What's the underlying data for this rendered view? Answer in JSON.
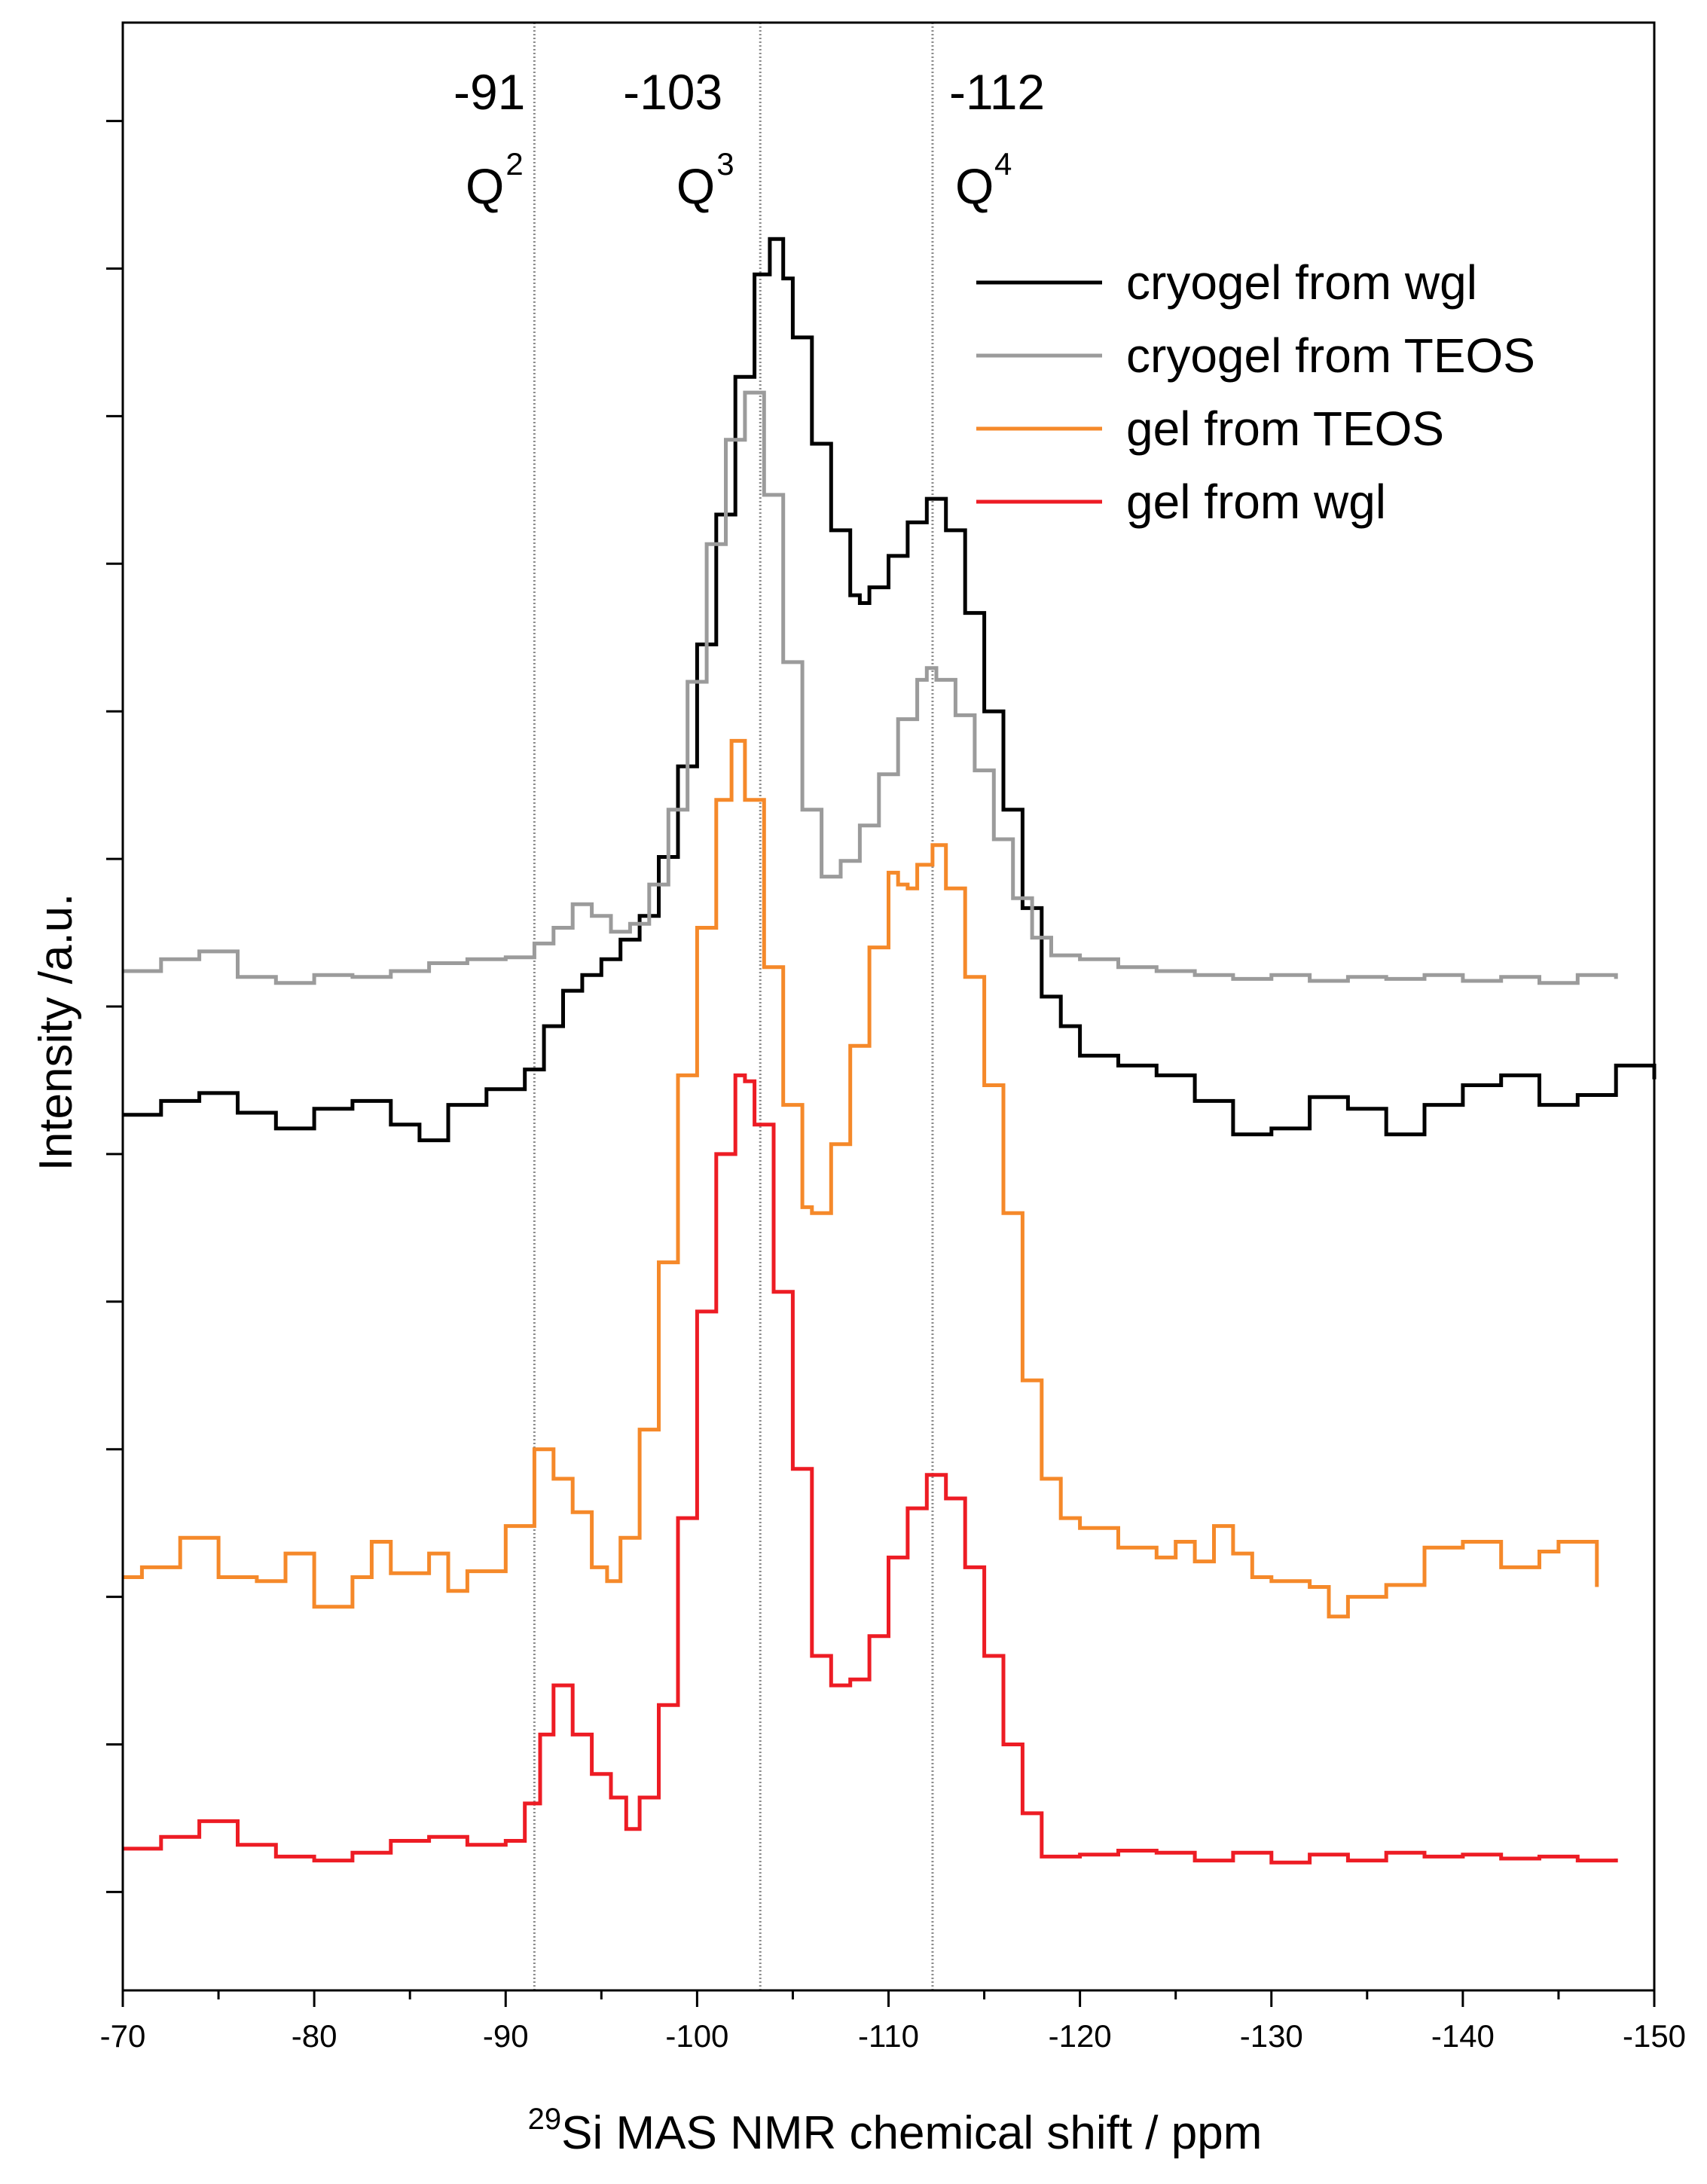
{
  "chart_data": {
    "type": "line",
    "title": "",
    "xlabel_sup": "29",
    "xlabel": "Si MAS NMR chemical shift / ppm",
    "ylabel": "Intensity /a.u.",
    "xlim": [
      -70,
      -150
    ],
    "ylim": [
      0,
      100
    ],
    "x_ticks": [
      -70,
      -80,
      -90,
      -100,
      -110,
      -120,
      -130,
      -140,
      -150
    ],
    "x_tick_labels": [
      "-70",
      "-80",
      "-90",
      "-100",
      "-110",
      "-120",
      "-130",
      "-140",
      "-150"
    ],
    "y_ticks": [
      5,
      12.5,
      20,
      27.5,
      35,
      42.5,
      50,
      57.5,
      65,
      72.5,
      80,
      87.5,
      95
    ],
    "reference_lines": [
      {
        "x": -91.5,
        "value_label": "-91",
        "species": "Q",
        "sup": "2"
      },
      {
        "x": -103.3,
        "value_label": "-103",
        "species": "Q",
        "sup": "3"
      },
      {
        "x": -112.3,
        "value_label": "-112",
        "species": "Q",
        "sup": "4"
      }
    ],
    "series": [
      {
        "name": "cryogel from wgl",
        "color": "#000000",
        "x": [
          -70,
          -72,
          -74,
          -76,
          -78,
          -80,
          -82,
          -84,
          -85.5,
          -87,
          -89,
          -91,
          -92,
          -93,
          -94,
          -95,
          -96,
          -97,
          -98,
          -99,
          -100,
          -101,
          -102,
          -103,
          -103.8,
          -104.5,
          -105,
          -106,
          -107,
          -108,
          -108.5,
          -109,
          -110,
          -111,
          -112,
          -113,
          -114,
          -115,
          -116,
          -117,
          -118,
          -119,
          -120,
          -122,
          -124,
          -126,
          -128,
          -130,
          -132,
          -134,
          -136,
          -138,
          -140,
          -142,
          -144,
          -146,
          -148,
          -150
        ],
        "y": [
          44.5,
          45.2,
          45.6,
          44.6,
          43.8,
          44.8,
          45.2,
          44.0,
          43.2,
          45.0,
          45.8,
          46.8,
          49.0,
          50.8,
          51.6,
          52.4,
          53.4,
          54.6,
          57.6,
          62.2,
          68.4,
          75.0,
          82.0,
          87.2,
          89.0,
          87.0,
          84.0,
          78.6,
          74.2,
          70.9,
          70.5,
          71.3,
          72.9,
          74.6,
          75.8,
          74.2,
          70.0,
          65.0,
          60.0,
          55.0,
          50.5,
          49.0,
          47.5,
          47.0,
          46.5,
          45.2,
          43.5,
          43.8,
          45.4,
          44.8,
          43.5,
          45.0,
          46.0,
          46.5,
          45.0,
          45.5,
          47.0,
          46.3
        ]
      },
      {
        "name": "cryogel from TEOS",
        "color": "#9b9b9b",
        "x": [
          -70,
          -72,
          -74,
          -76,
          -78,
          -80,
          -82,
          -84,
          -86,
          -88,
          -90,
          -91.5,
          -92.5,
          -93.5,
          -94.5,
          -95.5,
          -96.5,
          -97.5,
          -98.5,
          -99.5,
          -100.5,
          -101.5,
          -102.5,
          -103.5,
          -104.5,
          -105.5,
          -106.5,
          -107.5,
          -108.5,
          -109.5,
          -110.5,
          -111.5,
          -112,
          -112.5,
          -113.5,
          -114.5,
          -115.5,
          -116.5,
          -117.5,
          -118.5,
          -120,
          -122,
          -124,
          -126,
          -128,
          -130,
          -132,
          -134,
          -136,
          -138,
          -140,
          -142,
          -144,
          -146,
          -148
        ],
        "y": [
          51.8,
          52.4,
          52.8,
          51.5,
          51.2,
          51.6,
          51.5,
          51.8,
          52.2,
          52.4,
          52.5,
          53.2,
          54.0,
          55.2,
          54.6,
          53.8,
          54.2,
          56.2,
          60.0,
          66.5,
          73.5,
          78.8,
          81.2,
          76.0,
          67.5,
          60.0,
          56.6,
          57.4,
          59.2,
          61.8,
          64.6,
          66.6,
          67.2,
          66.6,
          64.8,
          62.0,
          58.5,
          55.5,
          53.5,
          52.6,
          52.4,
          52.0,
          51.8,
          51.6,
          51.4,
          51.6,
          51.3,
          51.5,
          51.4,
          51.6,
          51.3,
          51.5,
          51.2,
          51.6,
          51.4
        ]
      },
      {
        "name": "gel from TEOS",
        "color": "#f5892a",
        "x": [
          -70,
          -71,
          -73,
          -75,
          -77,
          -78.5,
          -80,
          -82,
          -83,
          -84,
          -86,
          -87,
          -88,
          -90,
          -91.5,
          -92.5,
          -93.5,
          -94.5,
          -95.3,
          -96,
          -97,
          -98,
          -99,
          -100,
          -101,
          -101.8,
          -102.5,
          -103.5,
          -104.5,
          -105.5,
          -106,
          -107,
          -108,
          -109,
          -110,
          -110.5,
          -111,
          -111.5,
          -112.3,
          -113,
          -114,
          -115,
          -116,
          -117,
          -118,
          -119,
          -120,
          -122,
          -124,
          -125,
          -126,
          -127,
          -128,
          -129,
          -130,
          -132,
          -133,
          -134,
          -136,
          -138,
          -140,
          -142,
          -144,
          -145,
          -147
        ],
        "y": [
          21.0,
          21.5,
          23.0,
          21.0,
          20.8,
          22.2,
          19.5,
          21.0,
          22.8,
          21.2,
          22.2,
          20.3,
          21.3,
          23.6,
          27.5,
          26.0,
          24.3,
          21.5,
          20.8,
          23.0,
          28.5,
          37.0,
          46.5,
          54.0,
          60.5,
          63.5,
          60.5,
          52.0,
          45.0,
          39.8,
          39.5,
          43.0,
          48.0,
          53.0,
          56.8,
          56.2,
          56.0,
          57.2,
          58.2,
          56.0,
          51.5,
          46.0,
          39.5,
          31.0,
          26.0,
          24.0,
          23.5,
          22.5,
          22.0,
          22.8,
          21.8,
          23.6,
          22.2,
          21.0,
          20.8,
          20.5,
          19.0,
          20.0,
          20.6,
          22.5,
          22.8,
          21.5,
          22.3,
          22.8,
          20.5
        ]
      },
      {
        "name": "gel from wgl",
        "color": "#ed1c24",
        "x": [
          -70,
          -72,
          -74,
          -76,
          -78,
          -80,
          -82,
          -84,
          -86,
          -88,
          -90,
          -91,
          -91.8,
          -92.5,
          -93.5,
          -94.5,
          -95.5,
          -96.3,
          -97,
          -98,
          -99,
          -100,
          -101,
          -102,
          -102.5,
          -103,
          -104,
          -105,
          -106,
          -107,
          -108,
          -109,
          -110,
          -111,
          -112,
          -113,
          -114,
          -115,
          -116,
          -117,
          -118,
          -120,
          -122,
          -124,
          -126,
          -128,
          -130,
          -132,
          -134,
          -136,
          -138,
          -140,
          -142,
          -144,
          -146,
          -148
        ],
        "y": [
          7.2,
          7.8,
          8.6,
          7.4,
          6.8,
          6.6,
          7.0,
          7.6,
          7.8,
          7.4,
          7.6,
          9.5,
          13.0,
          15.5,
          13.0,
          11.0,
          9.8,
          8.2,
          9.8,
          14.5,
          24.0,
          34.5,
          42.5,
          46.5,
          46.2,
          44.0,
          35.5,
          26.5,
          17.0,
          15.5,
          15.8,
          18.0,
          22.0,
          24.5,
          26.2,
          25.0,
          21.5,
          17.0,
          12.5,
          9.0,
          6.8,
          6.9,
          7.1,
          7.0,
          6.6,
          7.0,
          6.5,
          6.9,
          6.6,
          7.0,
          6.8,
          6.9,
          6.7,
          6.8,
          6.6,
          6.7
        ]
      }
    ],
    "legend_position": "top-right"
  }
}
